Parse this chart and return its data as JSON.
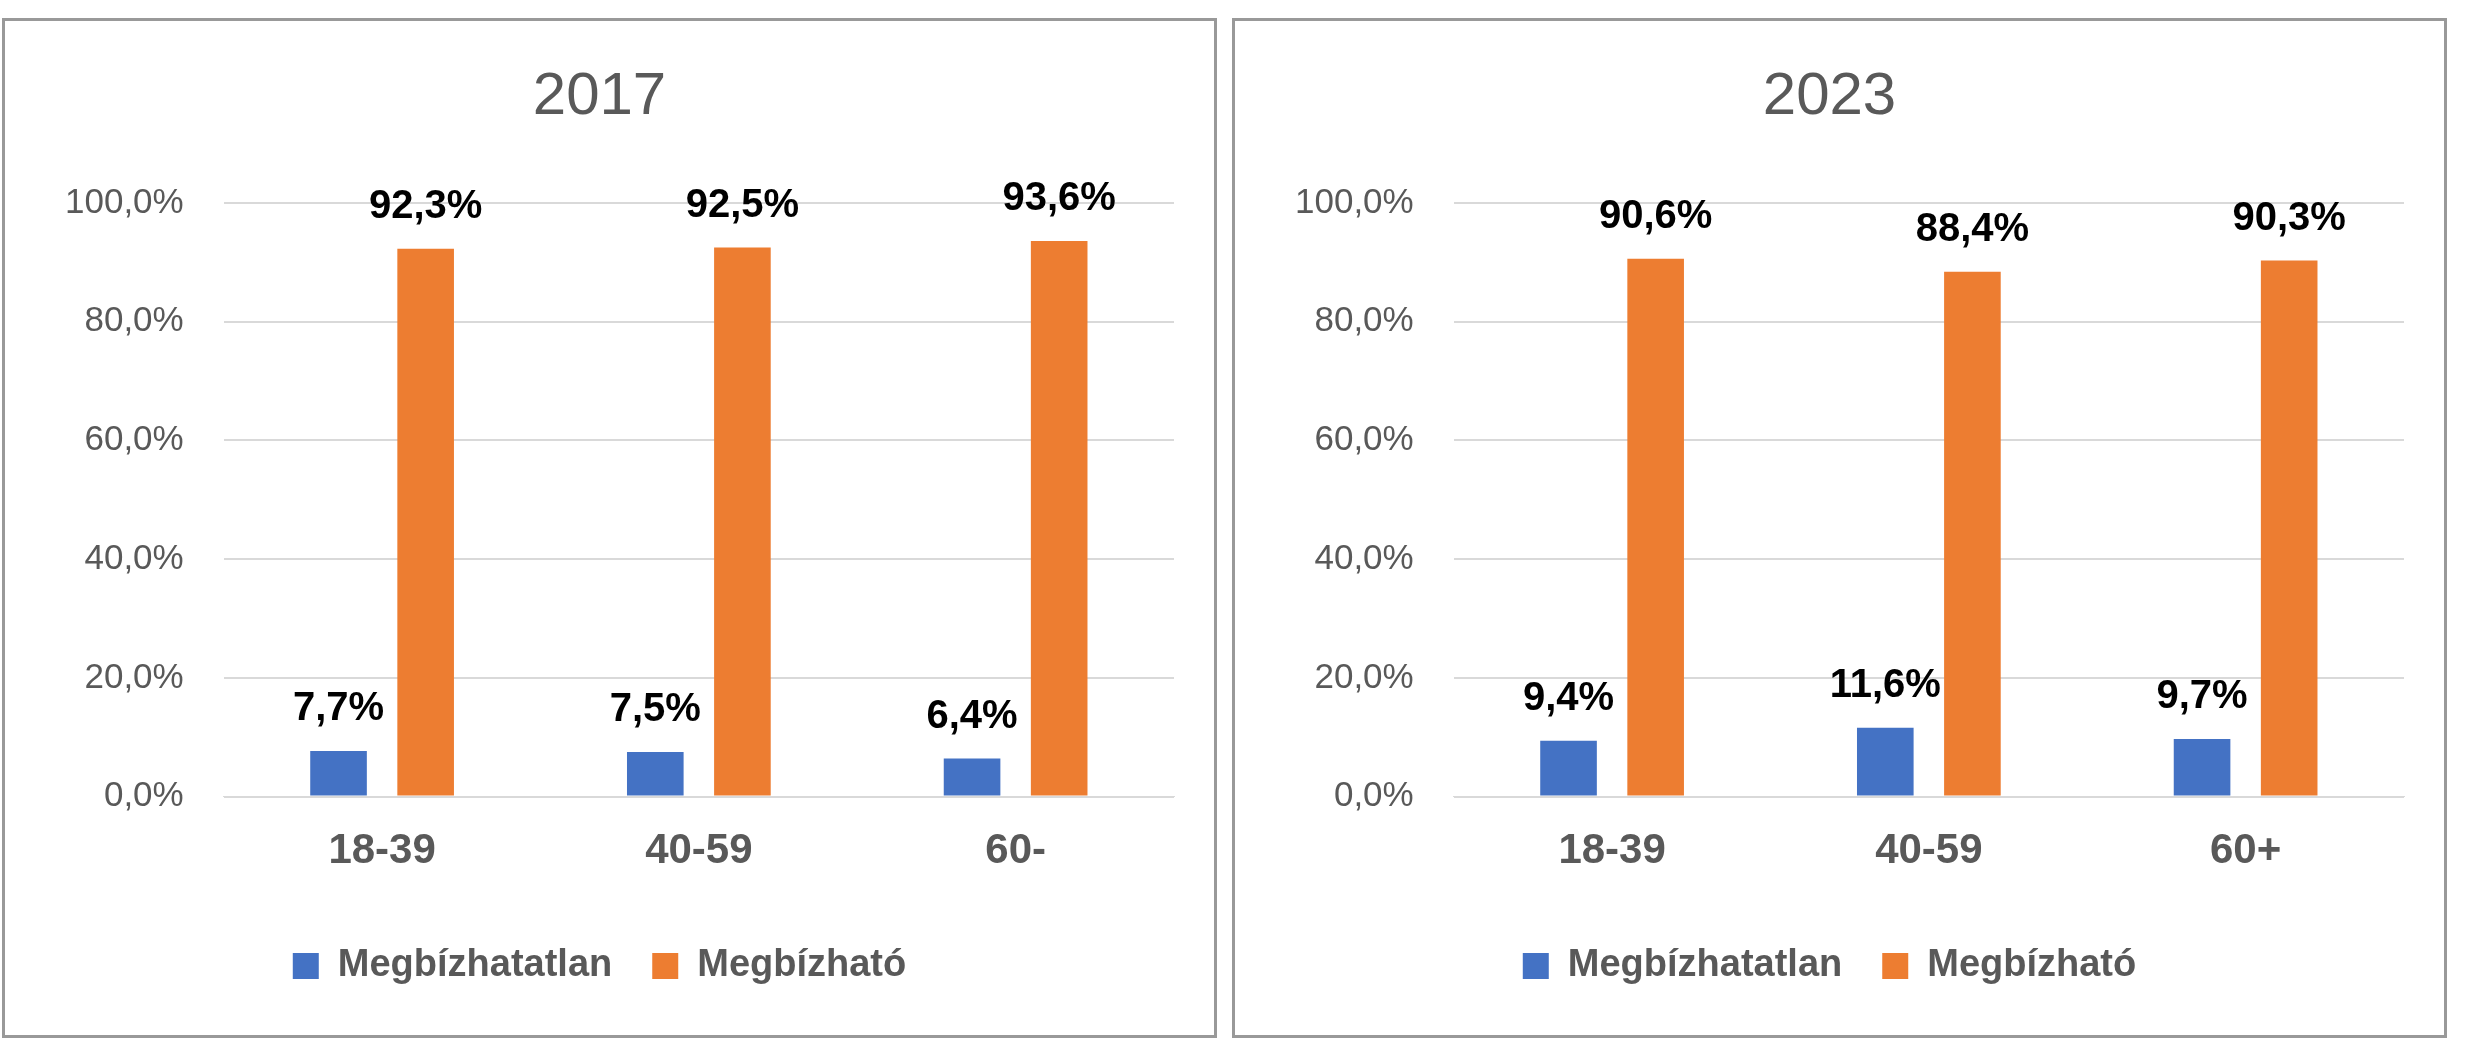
{
  "chart_data": [
    {
      "type": "bar",
      "title": "2017",
      "categories": [
        "18-39",
        "40-59",
        "60-"
      ],
      "series": [
        {
          "name": "Megbízhatatlan",
          "color": "#4472c4",
          "values": [
            7.7,
            7.5,
            6.4
          ],
          "value_labels": [
            "7,7%",
            "7,5%",
            "6,4%"
          ]
        },
        {
          "name": "Megbízható",
          "color": "#ed7d31",
          "values": [
            92.3,
            92.5,
            93.6
          ],
          "value_labels": [
            "92,3%",
            "92,5%",
            "93,6%"
          ]
        }
      ],
      "ylim": [
        0,
        100
      ],
      "yticks": [
        {
          "value": 0,
          "label": "0,0%"
        },
        {
          "value": 20,
          "label": "20,0%"
        },
        {
          "value": 40,
          "label": "40,0%"
        },
        {
          "value": 60,
          "label": "60,0%"
        },
        {
          "value": 80,
          "label": "80,0%"
        },
        {
          "value": 100,
          "label": "100,0%"
        }
      ],
      "grid": "y",
      "legend": "bottom"
    },
    {
      "type": "bar",
      "title": "2023",
      "categories": [
        "18-39",
        "40-59",
        "60+"
      ],
      "series": [
        {
          "name": "Megbízhatatlan",
          "color": "#4472c4",
          "values": [
            9.4,
            11.6,
            9.7
          ],
          "value_labels": [
            "9,4%",
            "11,6%",
            "9,7%"
          ]
        },
        {
          "name": "Megbízható",
          "color": "#ed7d31",
          "values": [
            90.6,
            88.4,
            90.3
          ],
          "value_labels": [
            "90,6%",
            "88,4%",
            "90,3%"
          ]
        }
      ],
      "ylim": [
        0,
        100
      ],
      "yticks": [
        {
          "value": 0,
          "label": "0,0%"
        },
        {
          "value": 20,
          "label": "20,0%"
        },
        {
          "value": 40,
          "label": "40,0%"
        },
        {
          "value": 60,
          "label": "60,0%"
        },
        {
          "value": 80,
          "label": "80,0%"
        },
        {
          "value": 100,
          "label": "100,0%"
        }
      ],
      "grid": "y",
      "legend": "bottom"
    }
  ]
}
